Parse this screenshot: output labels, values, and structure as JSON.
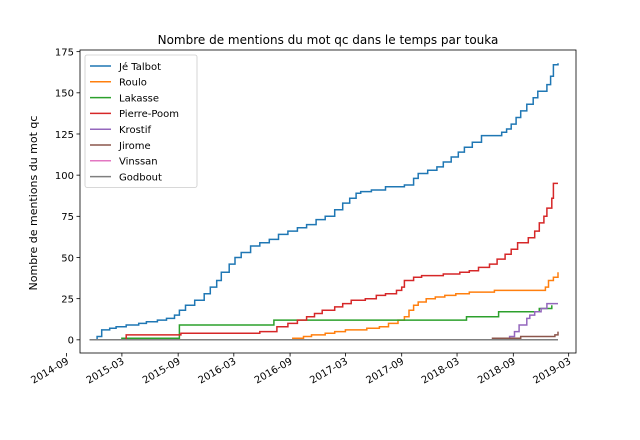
{
  "chart_data": {
    "type": "line",
    "title": "Nombre de mentions du mot qc dans le temps par touka",
    "xlabel": "",
    "ylabel": "Nombre de mentions du mot qc",
    "xlim": [
      "2014-10-15",
      "2019-03-25"
    ],
    "ylim": [
      -8,
      176
    ],
    "x_ticks": [
      "2014-09",
      "2015-03",
      "2015-09",
      "2016-03",
      "2016-09",
      "2017-03",
      "2017-09",
      "2018-03",
      "2018-09",
      "2019-03"
    ],
    "y_ticks": [
      0,
      25,
      50,
      75,
      100,
      125,
      150,
      175
    ],
    "grid": false,
    "legend_position": "top-left",
    "series": [
      {
        "name": "Jé Talbot",
        "color": "#1f77b4",
        "points": [
          [
            "2014-11-15",
            0
          ],
          [
            "2014-12-10",
            2
          ],
          [
            "2014-12-25",
            6
          ],
          [
            "2015-01-20",
            7
          ],
          [
            "2015-02-10",
            8
          ],
          [
            "2015-03-15",
            9
          ],
          [
            "2015-04-25",
            10
          ],
          [
            "2015-05-20",
            11
          ],
          [
            "2015-06-25",
            12
          ],
          [
            "2015-07-25",
            13
          ],
          [
            "2015-08-20",
            15
          ],
          [
            "2015-09-05",
            18
          ],
          [
            "2015-09-25",
            21
          ],
          [
            "2015-10-25",
            24
          ],
          [
            "2015-11-25",
            28
          ],
          [
            "2015-12-15",
            32
          ],
          [
            "2016-01-05",
            36
          ],
          [
            "2016-01-20",
            41
          ],
          [
            "2016-02-15",
            46
          ],
          [
            "2016-03-05",
            50
          ],
          [
            "2016-03-25",
            53
          ],
          [
            "2016-04-25",
            57
          ],
          [
            "2016-05-25",
            59
          ],
          [
            "2016-06-25",
            61
          ],
          [
            "2016-07-25",
            64
          ],
          [
            "2016-08-25",
            66
          ],
          [
            "2016-09-25",
            68
          ],
          [
            "2016-10-25",
            70
          ],
          [
            "2016-11-25",
            73
          ],
          [
            "2016-12-25",
            75
          ],
          [
            "2017-01-25",
            79
          ],
          [
            "2017-02-20",
            83
          ],
          [
            "2017-03-15",
            86
          ],
          [
            "2017-04-05",
            89
          ],
          [
            "2017-04-20",
            90
          ],
          [
            "2017-05-25",
            91
          ],
          [
            "2017-07-10",
            93
          ],
          [
            "2017-09-10",
            94
          ],
          [
            "2017-10-10",
            98
          ],
          [
            "2017-10-25",
            101
          ],
          [
            "2017-11-25",
            103
          ],
          [
            "2017-12-25",
            105
          ],
          [
            "2018-01-15",
            108
          ],
          [
            "2018-02-10",
            111
          ],
          [
            "2018-03-05",
            114
          ],
          [
            "2018-03-25",
            117
          ],
          [
            "2018-04-20",
            120
          ],
          [
            "2018-05-20",
            124
          ],
          [
            "2018-07-25",
            126
          ],
          [
            "2018-08-10",
            128
          ],
          [
            "2018-08-25",
            131
          ],
          [
            "2018-09-10",
            135
          ],
          [
            "2018-09-25",
            139
          ],
          [
            "2018-10-15",
            143
          ],
          [
            "2018-11-05",
            147
          ],
          [
            "2018-11-20",
            151
          ],
          [
            "2018-12-20",
            155
          ],
          [
            "2019-01-01",
            160
          ],
          [
            "2019-01-10",
            167
          ],
          [
            "2019-01-25",
            168
          ]
        ]
      },
      {
        "name": "Roulo",
        "color": "#ff7f0e",
        "points": [
          [
            "2014-11-15",
            0
          ],
          [
            "2016-09-10",
            1
          ],
          [
            "2016-10-15",
            2
          ],
          [
            "2016-11-10",
            3
          ],
          [
            "2016-12-25",
            4
          ],
          [
            "2017-01-25",
            5
          ],
          [
            "2017-03-01",
            6
          ],
          [
            "2017-05-10",
            7
          ],
          [
            "2017-06-20",
            8
          ],
          [
            "2017-07-20",
            10
          ],
          [
            "2017-08-20",
            12
          ],
          [
            "2017-09-10",
            14
          ],
          [
            "2017-09-25",
            18
          ],
          [
            "2017-10-10",
            21
          ],
          [
            "2017-10-25",
            23
          ],
          [
            "2017-11-20",
            25
          ],
          [
            "2017-12-20",
            26
          ],
          [
            "2018-01-20",
            27
          ],
          [
            "2018-02-25",
            28
          ],
          [
            "2018-04-10",
            29
          ],
          [
            "2018-07-01",
            30
          ],
          [
            "2018-12-15",
            32
          ],
          [
            "2018-12-25",
            36
          ],
          [
            "2019-01-10",
            38
          ],
          [
            "2019-01-25",
            41
          ]
        ]
      },
      {
        "name": "Lakasse",
        "color": "#2ca02c",
        "points": [
          [
            "2014-11-15",
            0
          ],
          [
            "2015-03-01",
            1
          ],
          [
            "2015-09-05",
            9
          ],
          [
            "2016-07-10",
            12
          ],
          [
            "2018-04-01",
            14
          ],
          [
            "2018-07-15",
            17
          ],
          [
            "2018-11-25",
            19
          ],
          [
            "2019-01-05",
            21
          ]
        ]
      },
      {
        "name": "Pierre-Poom",
        "color": "#d62728",
        "points": [
          [
            "2014-11-15",
            0
          ],
          [
            "2015-03-15",
            3
          ],
          [
            "2015-09-10",
            4
          ],
          [
            "2016-05-25",
            5
          ],
          [
            "2016-07-20",
            8
          ],
          [
            "2016-08-25",
            10
          ],
          [
            "2016-09-25",
            12
          ],
          [
            "2016-10-25",
            14
          ],
          [
            "2016-11-20",
            16
          ],
          [
            "2016-12-15",
            18
          ],
          [
            "2017-01-25",
            20
          ],
          [
            "2017-02-20",
            22
          ],
          [
            "2017-03-20",
            24
          ],
          [
            "2017-05-05",
            25
          ],
          [
            "2017-06-10",
            27
          ],
          [
            "2017-07-10",
            28
          ],
          [
            "2017-08-15",
            30
          ],
          [
            "2017-09-01",
            32
          ],
          [
            "2017-09-10",
            36
          ],
          [
            "2017-10-10",
            38
          ],
          [
            "2017-11-05",
            39
          ],
          [
            "2018-01-15",
            40
          ],
          [
            "2018-03-10",
            41
          ],
          [
            "2018-04-10",
            42
          ],
          [
            "2018-05-10",
            44
          ],
          [
            "2018-06-15",
            46
          ],
          [
            "2018-07-10",
            49
          ],
          [
            "2018-08-05",
            52
          ],
          [
            "2018-08-25",
            55
          ],
          [
            "2018-09-15",
            59
          ],
          [
            "2018-10-20",
            62
          ],
          [
            "2018-11-10",
            66
          ],
          [
            "2018-11-25",
            71
          ],
          [
            "2018-12-10",
            75
          ],
          [
            "2018-12-20",
            80
          ],
          [
            "2019-01-05",
            86
          ],
          [
            "2019-01-10",
            95
          ],
          [
            "2019-01-25",
            95
          ]
        ]
      },
      {
        "name": "Krostif",
        "color": "#9467bd",
        "points": [
          [
            "2014-11-15",
            0
          ],
          [
            "2018-08-20",
            2
          ],
          [
            "2018-09-05",
            5
          ],
          [
            "2018-09-20",
            9
          ],
          [
            "2018-10-15",
            13
          ],
          [
            "2018-10-25",
            15
          ],
          [
            "2018-11-10",
            17
          ],
          [
            "2018-12-01",
            19
          ],
          [
            "2018-12-20",
            22
          ],
          [
            "2019-01-25",
            22
          ]
        ]
      },
      {
        "name": "Jirome",
        "color": "#8c564b",
        "points": [
          [
            "2014-11-15",
            0
          ],
          [
            "2018-06-25",
            1
          ],
          [
            "2018-09-25",
            2
          ],
          [
            "2019-01-15",
            3
          ],
          [
            "2019-01-25",
            5
          ]
        ]
      },
      {
        "name": "Vinssan",
        "color": "#e377c2",
        "points": [
          [
            "2014-11-15",
            0
          ],
          [
            "2019-01-25",
            0
          ]
        ]
      },
      {
        "name": "Godbout",
        "color": "#7f7f7f",
        "points": [
          [
            "2014-11-15",
            0
          ],
          [
            "2019-01-25",
            0
          ]
        ]
      }
    ]
  }
}
